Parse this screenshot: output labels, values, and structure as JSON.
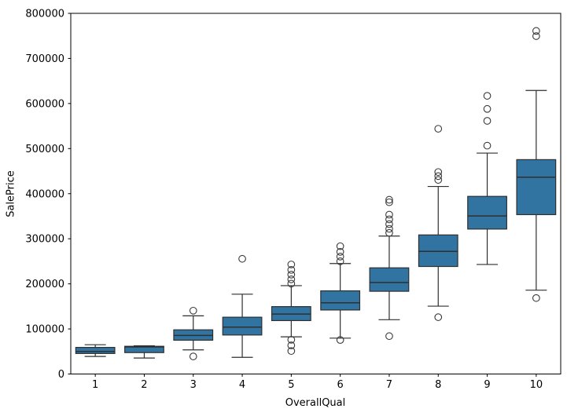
{
  "figure": {
    "xlabel": "OverallQual",
    "ylabel": "SalePrice",
    "background_color": "#ffffff",
    "spine_color": "#000000"
  },
  "chart_data": {
    "type": "boxplot",
    "title": "",
    "xlabel": "OverallQual",
    "ylabel": "SalePrice",
    "ylim": [
      0,
      800000
    ],
    "y_ticks": [
      0,
      100000,
      200000,
      300000,
      400000,
      500000,
      600000,
      700000,
      800000
    ],
    "categories": [
      "1",
      "2",
      "3",
      "4",
      "5",
      "6",
      "7",
      "8",
      "9",
      "10"
    ],
    "grid": false,
    "legend": false,
    "box_fill_color": "#3274a1",
    "box_edge_color": "#2f2f2f",
    "outlier_marker": "open-circle",
    "boxes": [
      {
        "label": "1",
        "whisker_low": 39000,
        "q1": 45500,
        "median": 50000,
        "q3": 59000,
        "whisker_high": 65000,
        "outliers": []
      },
      {
        "label": "2",
        "whisker_low": 35500,
        "q1": 47500,
        "median": 60000,
        "q3": 61500,
        "whisker_high": 62500,
        "outliers": []
      },
      {
        "label": "3",
        "whisker_low": 53500,
        "q1": 75000,
        "median": 85500,
        "q3": 98000,
        "whisker_high": 129000,
        "outliers": [
          140500,
          39000
        ]
      },
      {
        "label": "4",
        "whisker_low": 37000,
        "q1": 86500,
        "median": 104000,
        "q3": 126000,
        "whisker_high": 177000,
        "outliers": [
          255500
        ]
      },
      {
        "label": "5",
        "whisker_low": 82500,
        "q1": 118500,
        "median": 133000,
        "q3": 149500,
        "whisker_high": 196000,
        "outliers": [
          243000,
          231000,
          220500,
          210000,
          200500,
          76000,
          63500,
          51000
        ]
      },
      {
        "label": "6",
        "whisker_low": 79500,
        "q1": 142000,
        "median": 158000,
        "q3": 184500,
        "whisker_high": 245000,
        "outliers": [
          283500,
          271000,
          260500,
          250000,
          75500
        ]
      },
      {
        "label": "7",
        "whisker_low": 120500,
        "q1": 183500,
        "median": 203000,
        "q3": 235500,
        "whisker_high": 306000,
        "outliers": [
          386500,
          381000,
          353500,
          343000,
          332500,
          322000,
          313000,
          84000
        ]
      },
      {
        "label": "8",
        "whisker_low": 150500,
        "q1": 238500,
        "median": 272000,
        "q3": 308500,
        "whisker_high": 416000,
        "outliers": [
          544000,
          448000,
          439000,
          430500,
          126000
        ]
      },
      {
        "label": "9",
        "whisker_low": 243000,
        "q1": 321500,
        "median": 350500,
        "q3": 394000,
        "whisker_high": 490000,
        "outliers": [
          617000,
          588000,
          561500,
          506500
        ]
      },
      {
        "label": "10",
        "whisker_low": 186000,
        "q1": 353500,
        "median": 436500,
        "q3": 475500,
        "whisker_high": 629000,
        "outliers": [
          761000,
          749500,
          168500
        ]
      }
    ]
  }
}
